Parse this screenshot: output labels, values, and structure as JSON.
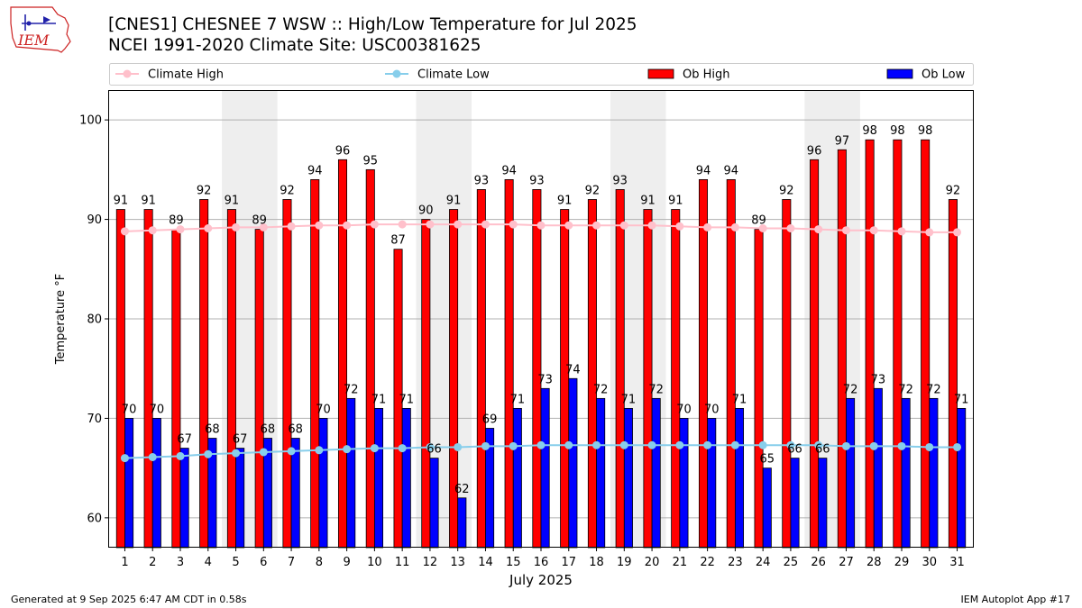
{
  "header": {
    "logo_text": "IEM",
    "title_line1": "[CNES1] CHESNEE 7 WSW :: High/Low Temperature for Jul 2025",
    "title_line2": "NCEI 1991-2020 Climate Site: USC00381625"
  },
  "footer": {
    "generated": "Generated at 9 Sep 2025 6:47 AM CDT in 0.58s",
    "app": "IEM Autoplot App #17"
  },
  "chart_data": {
    "type": "bar",
    "xlabel": "July 2025",
    "ylabel": "Temperature °F",
    "ylim": [
      57,
      103
    ],
    "yticks": [
      60,
      70,
      80,
      90,
      100
    ],
    "grid": "horizontal",
    "legend_position": "top",
    "weekend_shading_days": [
      [
        5,
        6
      ],
      [
        12,
        13
      ],
      [
        19,
        20
      ],
      [
        26,
        27
      ]
    ],
    "categories": [
      "1",
      "2",
      "3",
      "4",
      "5",
      "6",
      "7",
      "8",
      "9",
      "10",
      "11",
      "12",
      "13",
      "14",
      "15",
      "16",
      "17",
      "18",
      "19",
      "20",
      "21",
      "22",
      "23",
      "24",
      "25",
      "26",
      "27",
      "28",
      "29",
      "30",
      "31"
    ],
    "series": [
      {
        "name": "Ob High",
        "kind": "bar",
        "color": "#ff0000",
        "values": [
          91,
          91,
          89,
          92,
          91,
          89,
          92,
          94,
          96,
          95,
          87,
          90,
          91,
          93,
          94,
          93,
          91,
          92,
          93,
          91,
          91,
          94,
          94,
          89,
          92,
          96,
          97,
          98,
          98,
          98,
          92
        ]
      },
      {
        "name": "Ob Low",
        "kind": "bar",
        "color": "#0000ff",
        "values": [
          70,
          70,
          67,
          68,
          67,
          68,
          68,
          70,
          72,
          71,
          71,
          66,
          62,
          69,
          71,
          73,
          74,
          72,
          71,
          72,
          70,
          70,
          71,
          65,
          66,
          66,
          72,
          73,
          72,
          72,
          71
        ]
      },
      {
        "name": "Climate High",
        "kind": "line",
        "color": "#ffc0cb",
        "values": [
          88.8,
          88.9,
          89.0,
          89.1,
          89.2,
          89.2,
          89.3,
          89.4,
          89.4,
          89.5,
          89.5,
          89.5,
          89.5,
          89.5,
          89.5,
          89.4,
          89.4,
          89.4,
          89.4,
          89.4,
          89.3,
          89.2,
          89.2,
          89.1,
          89.1,
          89.0,
          88.9,
          88.9,
          88.8,
          88.7,
          88.7
        ]
      },
      {
        "name": "Climate Low",
        "kind": "line",
        "color": "#87ceeb",
        "values": [
          66.0,
          66.1,
          66.2,
          66.4,
          66.5,
          66.6,
          66.7,
          66.8,
          66.9,
          67.0,
          67.0,
          67.1,
          67.1,
          67.2,
          67.2,
          67.3,
          67.3,
          67.3,
          67.3,
          67.3,
          67.3,
          67.3,
          67.3,
          67.3,
          67.3,
          67.3,
          67.2,
          67.2,
          67.2,
          67.1,
          67.1
        ]
      }
    ]
  }
}
